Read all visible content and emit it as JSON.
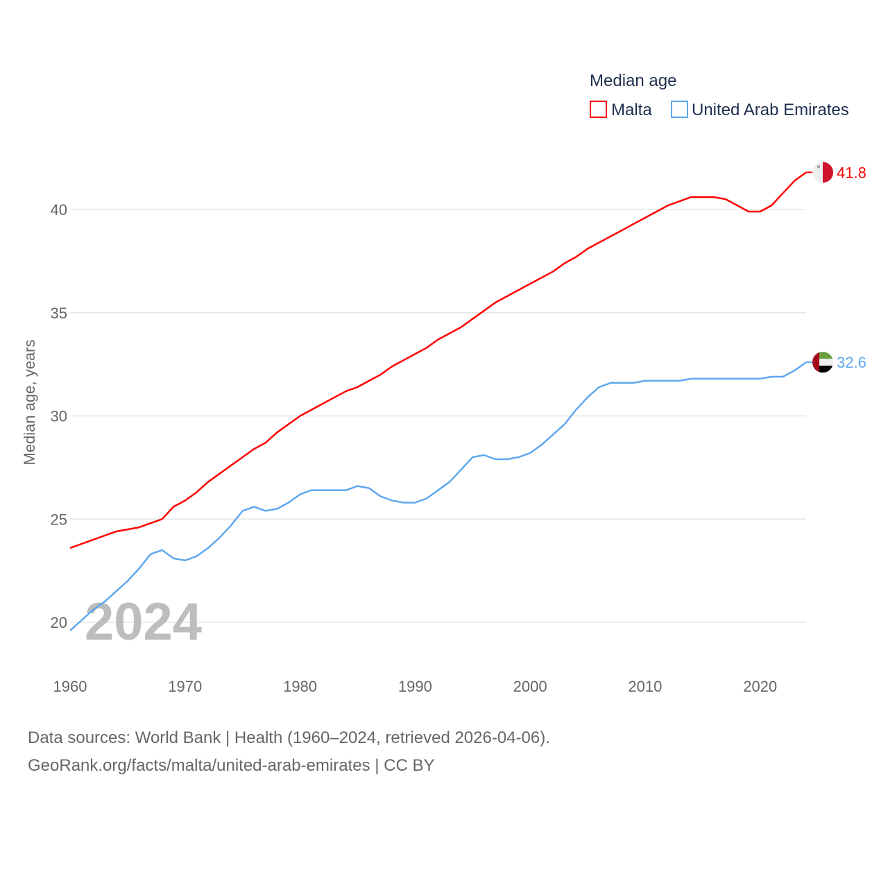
{
  "chart_data": {
    "type": "line",
    "title": "Median age",
    "xlabel": "",
    "ylabel": "Median age, years",
    "xlim": [
      1960,
      2024
    ],
    "ylim": [
      19.3,
      42.5
    ],
    "x_ticks": [
      1960,
      1970,
      1980,
      1990,
      2000,
      2010,
      2020
    ],
    "y_ticks": [
      20,
      25,
      30,
      35,
      40
    ],
    "grid": true,
    "legend_position": "top-right",
    "current_year_label": "2024",
    "x": [
      1960,
      1961,
      1962,
      1963,
      1964,
      1965,
      1966,
      1967,
      1968,
      1969,
      1970,
      1971,
      1972,
      1973,
      1974,
      1975,
      1976,
      1977,
      1978,
      1979,
      1980,
      1981,
      1982,
      1983,
      1984,
      1985,
      1986,
      1987,
      1988,
      1989,
      1990,
      1991,
      1992,
      1993,
      1994,
      1995,
      1996,
      1997,
      1998,
      1999,
      2000,
      2001,
      2002,
      2003,
      2004,
      2005,
      2006,
      2007,
      2008,
      2009,
      2010,
      2011,
      2012,
      2013,
      2014,
      2015,
      2016,
      2017,
      2018,
      2019,
      2020,
      2021,
      2022,
      2023,
      2024
    ],
    "series": [
      {
        "name": "Malta",
        "color": "#ff0000",
        "end_label": "41.8",
        "values": [
          23.6,
          23.8,
          24.0,
          24.2,
          24.4,
          24.5,
          24.6,
          24.8,
          25.0,
          25.6,
          25.9,
          26.3,
          26.8,
          27.2,
          27.6,
          28.0,
          28.4,
          28.7,
          29.2,
          29.6,
          30.0,
          30.3,
          30.6,
          30.9,
          31.2,
          31.4,
          31.7,
          32.0,
          32.4,
          32.7,
          33.0,
          33.3,
          33.7,
          34.0,
          34.3,
          34.7,
          35.1,
          35.5,
          35.8,
          36.1,
          36.4,
          36.7,
          37.0,
          37.4,
          37.7,
          38.1,
          38.4,
          38.7,
          39.0,
          39.3,
          39.6,
          39.9,
          40.2,
          40.4,
          40.6,
          40.6,
          40.6,
          40.5,
          40.2,
          39.9,
          39.9,
          40.2,
          40.8,
          41.4,
          41.8
        ]
      },
      {
        "name": "United Arab Emirates",
        "color": "#5ea8ee",
        "end_label": "32.6",
        "values": [
          19.6,
          20.1,
          20.6,
          21.0,
          21.5,
          22.0,
          22.6,
          23.3,
          23.5,
          23.1,
          23.0,
          23.2,
          23.6,
          24.1,
          24.7,
          25.4,
          25.6,
          25.4,
          25.5,
          25.8,
          26.2,
          26.4,
          26.4,
          26.4,
          26.4,
          26.6,
          26.5,
          26.1,
          25.9,
          25.8,
          25.8,
          26.0,
          26.4,
          26.8,
          27.4,
          28.0,
          28.1,
          27.9,
          27.9,
          28.0,
          28.2,
          28.6,
          29.1,
          29.6,
          30.3,
          30.9,
          31.4,
          31.6,
          31.6,
          31.6,
          31.7,
          31.7,
          31.7,
          31.7,
          31.8,
          31.8,
          31.8,
          31.8,
          31.8,
          31.8,
          31.8,
          31.9,
          31.9,
          32.2,
          32.6
        ]
      }
    ]
  },
  "footer": {
    "line1": "Data sources: World Bank | Health (1960–2024, retrieved 2026-04-06).",
    "line2": "GeoRank.org/facts/malta/united-arab-emirates | CC BY"
  }
}
